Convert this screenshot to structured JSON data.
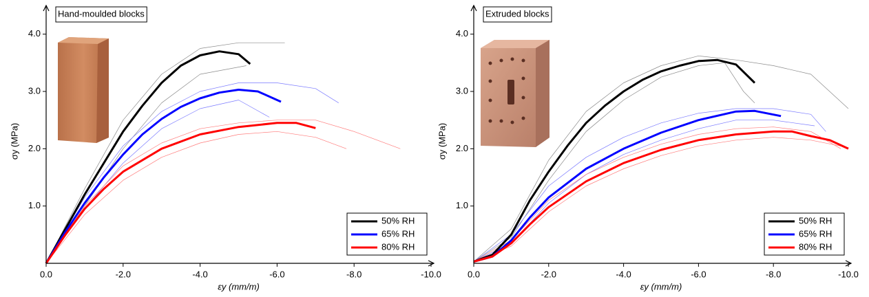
{
  "chart_data": [
    {
      "type": "line",
      "annotation": "Hand-moulded blocks",
      "xlabel": "εy (mm/m)",
      "ylabel": "σy (MPa)",
      "xlim": [
        0,
        -10
      ],
      "ylim": [
        0,
        4.5
      ],
      "xticks": [
        {
          "value": 0,
          "label": "0.0"
        },
        {
          "value": -2,
          "label": "-2.0"
        },
        {
          "value": -4,
          "label": "-4.0"
        },
        {
          "value": -6,
          "label": "-6.0"
        },
        {
          "value": -8,
          "label": "-8.0"
        },
        {
          "value": -10,
          "label": "-10.0"
        }
      ],
      "yticks": [
        {
          "value": 1,
          "label": "1.0"
        },
        {
          "value": 2,
          "label": "2.0"
        },
        {
          "value": 3,
          "label": "3.0"
        },
        {
          "value": 4,
          "label": "4.0"
        }
      ],
      "legend": "lower right",
      "series": [
        {
          "name": "50% RH",
          "color": "#000000",
          "specimen_color": "#8a8a8a",
          "x": [
            0,
            -0.5,
            -1,
            -1.5,
            -2,
            -2.5,
            -3,
            -3.5,
            -4,
            -4.5,
            -5,
            -5.3
          ],
          "values": [
            0,
            0.6,
            1.2,
            1.75,
            2.3,
            2.75,
            3.15,
            3.45,
            3.63,
            3.7,
            3.65,
            3.48
          ],
          "specimens": [
            {
              "x": [
                0,
                -1,
                -2,
                -3,
                -4,
                -5,
                -6.2
              ],
              "values": [
                0,
                1.3,
                2.5,
                3.3,
                3.75,
                3.85,
                3.85
              ]
            },
            {
              "x": [
                0,
                -1,
                -2,
                -3,
                -4,
                -5.2
              ],
              "values": [
                0,
                1.0,
                2.0,
                2.8,
                3.3,
                3.45
              ]
            }
          ]
        },
        {
          "name": "65% RH",
          "color": "#0000ff",
          "specimen_color": "#7a7aff",
          "x": [
            0,
            -0.5,
            -1,
            -1.5,
            -2,
            -2.5,
            -3,
            -3.5,
            -4,
            -4.5,
            -5,
            -5.5,
            -6.1
          ],
          "values": [
            0,
            0.55,
            1.05,
            1.5,
            1.9,
            2.25,
            2.52,
            2.73,
            2.88,
            2.98,
            3.03,
            3.0,
            2.82
          ],
          "specimens": [
            {
              "x": [
                0,
                -1,
                -2,
                -3,
                -4,
                -5,
                -6,
                -7,
                -7.6
              ],
              "values": [
                0,
                1.15,
                2.05,
                2.65,
                3.0,
                3.15,
                3.15,
                3.05,
                2.8
              ]
            },
            {
              "x": [
                0,
                -1,
                -2,
                -3,
                -4,
                -5,
                -5.8
              ],
              "values": [
                0,
                0.95,
                1.75,
                2.35,
                2.7,
                2.85,
                2.55
              ]
            }
          ]
        },
        {
          "name": "80% RH",
          "color": "#ff0000",
          "specimen_color": "#ff7a7a",
          "x": [
            0,
            -0.5,
            -1,
            -1.5,
            -2,
            -3,
            -4,
            -5,
            -6,
            -6.5,
            -7
          ],
          "values": [
            0,
            0.5,
            0.95,
            1.3,
            1.6,
            2.0,
            2.25,
            2.38,
            2.45,
            2.45,
            2.36
          ],
          "specimens": [
            {
              "x": [
                0,
                -1,
                -2,
                -3,
                -4,
                -5,
                -6,
                -7,
                -8,
                -9.2
              ],
              "values": [
                0,
                1.0,
                1.7,
                2.1,
                2.35,
                2.45,
                2.5,
                2.5,
                2.3,
                2.0
              ]
            },
            {
              "x": [
                0,
                -1,
                -2,
                -3,
                -4,
                -5,
                -6,
                -7,
                -7.8
              ],
              "values": [
                0,
                0.85,
                1.45,
                1.85,
                2.1,
                2.25,
                2.3,
                2.2,
                2.0
              ]
            }
          ]
        }
      ]
    },
    {
      "type": "line",
      "annotation": "Extruded blocks",
      "xlabel": "εy (mm/m)",
      "ylabel": "σy (MPa)",
      "xlim": [
        0,
        -10
      ],
      "ylim": [
        0,
        4.5
      ],
      "xticks": [
        {
          "value": 0,
          "label": "0.0"
        },
        {
          "value": -2,
          "label": "-2.0"
        },
        {
          "value": -4,
          "label": "-4.0"
        },
        {
          "value": -6,
          "label": "-6.0"
        },
        {
          "value": -8,
          "label": "-8.0"
        },
        {
          "value": -10,
          "label": "-10.0"
        }
      ],
      "yticks": [
        {
          "value": 1,
          "label": "1.0"
        },
        {
          "value": 2,
          "label": "2.0"
        },
        {
          "value": 3,
          "label": "3.0"
        },
        {
          "value": 4,
          "label": "4.0"
        }
      ],
      "legend": "lower right",
      "series": [
        {
          "name": "50% RH",
          "color": "#000000",
          "specimen_color": "#8a8a8a",
          "x": [
            0,
            -0.5,
            -1,
            -1.5,
            -2,
            -2.5,
            -3,
            -3.5,
            -4,
            -4.5,
            -5,
            -5.5,
            -6,
            -6.5,
            -7,
            -7.5
          ],
          "values": [
            0.03,
            0.15,
            0.5,
            1.1,
            1.6,
            2.05,
            2.45,
            2.75,
            3.0,
            3.2,
            3.35,
            3.45,
            3.53,
            3.55,
            3.47,
            3.15
          ],
          "specimens": [
            {
              "x": [
                0,
                -1,
                -2,
                -3,
                -4,
                -5,
                -6,
                -7,
                -8,
                -9,
                -10
              ],
              "values": [
                0.03,
                0.6,
                1.8,
                2.65,
                3.15,
                3.45,
                3.62,
                3.55,
                3.45,
                3.3,
                2.7
              ]
            },
            {
              "x": [
                0,
                -1,
                -2,
                -3,
                -4,
                -5,
                -6,
                -6.7,
                -7.2,
                -7.5
              ],
              "values": [
                0.03,
                0.45,
                1.45,
                2.3,
                2.85,
                3.25,
                3.45,
                3.5,
                3.0,
                2.8
              ]
            }
          ]
        },
        {
          "name": "65% RH",
          "color": "#0000ff",
          "specimen_color": "#7a7aff",
          "x": [
            0,
            -0.5,
            -1,
            -1.5,
            -2,
            -3,
            -4,
            -5,
            -6,
            -7,
            -7.5,
            -8.2
          ],
          "values": [
            0.03,
            0.12,
            0.4,
            0.8,
            1.15,
            1.65,
            2.0,
            2.28,
            2.5,
            2.65,
            2.66,
            2.57
          ],
          "specimens": [
            {
              "x": [
                0,
                -1,
                -2,
                -3,
                -4,
                -5,
                -6,
                -7,
                -8,
                -9,
                -9.4
              ],
              "values": [
                0.03,
                0.5,
                1.35,
                1.85,
                2.2,
                2.45,
                2.62,
                2.7,
                2.7,
                2.6,
                2.3
              ]
            },
            {
              "x": [
                0,
                -1,
                -2,
                -3,
                -4,
                -5,
                -6,
                -7,
                -8,
                -9.1
              ],
              "values": [
                0.03,
                0.35,
                1.05,
                1.55,
                1.9,
                2.15,
                2.35,
                2.5,
                2.5,
                2.4
              ]
            }
          ]
        },
        {
          "name": "80% RH",
          "color": "#ff0000",
          "specimen_color": "#ff7a7a",
          "x": [
            0,
            -0.5,
            -1,
            -1.5,
            -2,
            -3,
            -4,
            -5,
            -6,
            -7,
            -8,
            -8.5,
            -9,
            -9.5,
            -10
          ],
          "values": [
            0.03,
            0.12,
            0.35,
            0.68,
            0.98,
            1.43,
            1.75,
            1.98,
            2.15,
            2.25,
            2.3,
            2.3,
            2.22,
            2.15,
            2.0
          ],
          "specimens": [
            {
              "x": [
                0,
                -1,
                -2,
                -3,
                -4,
                -5,
                -6,
                -7,
                -8,
                -9,
                -9.8
              ],
              "values": [
                0.03,
                0.4,
                1.1,
                1.55,
                1.85,
                2.08,
                2.25,
                2.35,
                2.38,
                2.3,
                2.0
              ]
            },
            {
              "x": [
                0,
                -1,
                -2,
                -3,
                -4,
                -5,
                -6,
                -7,
                -8,
                -9,
                -10
              ],
              "values": [
                0.03,
                0.3,
                0.9,
                1.35,
                1.65,
                1.88,
                2.05,
                2.15,
                2.2,
                2.15,
                2.02
              ]
            }
          ]
        }
      ]
    }
  ]
}
